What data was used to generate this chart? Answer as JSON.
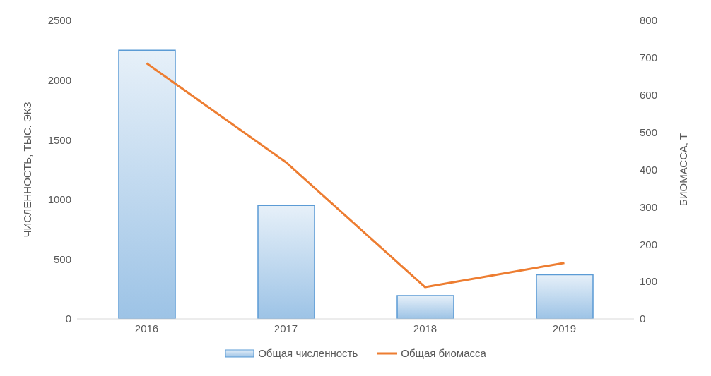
{
  "chart_data": {
    "type": "bar",
    "categories": [
      "2016",
      "2017",
      "2018",
      "2019"
    ],
    "series": [
      {
        "name": "Общая численность",
        "color": "#5b9bd5",
        "values": [
          2250,
          950,
          195,
          370
        ]
      },
      {
        "name": "Общая биомасса",
        "type": "line",
        "axis": "y2",
        "color": "#ed7d31",
        "values": [
          685,
          420,
          85,
          150
        ]
      }
    ],
    "ylabel": "ЧИСЛЕННОСТЬ, ТЫС. ЭКЗ",
    "y2label": "БИОМАССА, Т",
    "ylim": [
      0,
      2500
    ],
    "yticks": [
      0,
      500,
      1000,
      1500,
      2000,
      2500
    ],
    "y2lim": [
      0,
      800
    ],
    "y2ticks": [
      0,
      100,
      200,
      300,
      400,
      500,
      600,
      700,
      800
    ],
    "grid": false,
    "legend": "bottom",
    "marker": "none"
  }
}
